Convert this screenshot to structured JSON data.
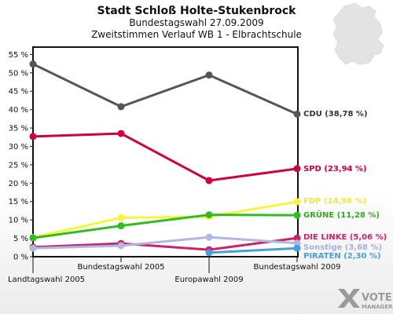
{
  "chart_data": {
    "type": "line",
    "title": "Stadt Schloß Holte-Stukenbrock",
    "subtitle": "Bundestagswahl 27.09.2009",
    "subtitle2": "Zweitstimmen Verlauf WB 1 - Elbrachtschule",
    "categories": [
      "Landtagswahl 2005",
      "Bundestagswahl 2005",
      "Europawahl 2009",
      "Bundestagswahl 2009"
    ],
    "ylim": [
      0,
      57
    ],
    "yticks": [
      "0 %",
      "5 %",
      "10 %",
      "15 %",
      "20 %",
      "25 %",
      "30 %",
      "35 %",
      "40 %",
      "45 %",
      "50 %",
      "55 %"
    ],
    "grid": false,
    "series": [
      {
        "name": "CDU",
        "label": "CDU (38,78 %)",
        "color": "#555555",
        "labelColor": "#333333",
        "values": [
          52.4,
          40.8,
          49.4,
          38.78
        ]
      },
      {
        "name": "SPD",
        "label": "SPD (23,94 %)",
        "color": "#d0003a",
        "labelColor": "#d0003a",
        "values": [
          32.7,
          33.5,
          20.7,
          23.94
        ]
      },
      {
        "name": "FDP",
        "label": "FDP (14,96 %)",
        "color": "#f5f53a",
        "labelColor": "#e8e84a",
        "values": [
          5.2,
          10.6,
          10.9,
          14.96
        ]
      },
      {
        "name": "GRÜNE",
        "label": "GRÜNE (11,28 %)",
        "color": "#33bb22",
        "labelColor": "#33aa22",
        "values": [
          5.1,
          8.4,
          11.4,
          11.28
        ]
      },
      {
        "name": "DIE LINKE",
        "label": "DIE LINKE (5,06 %)",
        "color": "#cc2266",
        "labelColor": "#cc2266",
        "values": [
          2.6,
          3.6,
          1.9,
          5.06
        ]
      },
      {
        "name": "Sonstige",
        "label": "Sonstige (3,68 %)",
        "color": "#b0b8e0",
        "labelColor": "#a8b0d8",
        "values": [
          2.3,
          3.0,
          5.3,
          3.68
        ]
      },
      {
        "name": "PIRATEN",
        "label": "PIRATEN (2,30 %)",
        "color": "#44a0dd",
        "labelColor": "#44a0dd",
        "values": [
          null,
          null,
          1.1,
          2.3
        ]
      }
    ]
  },
  "logo": {
    "line1": "VOTE",
    "line2": "MANAGER"
  }
}
